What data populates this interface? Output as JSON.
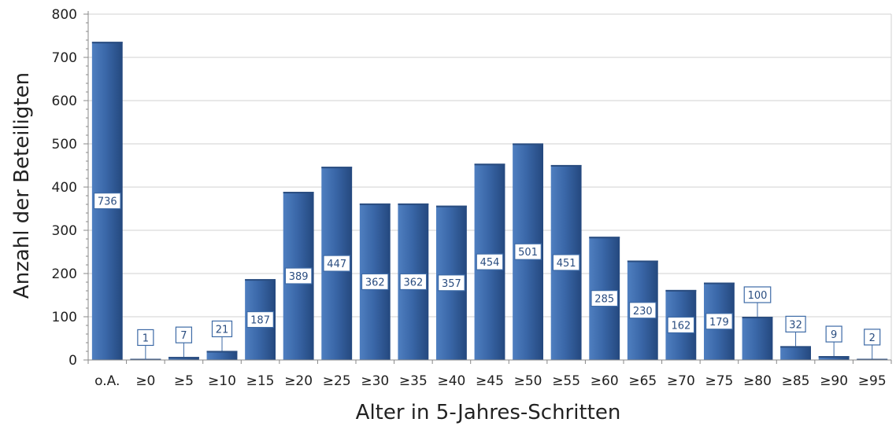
{
  "chart_data": {
    "type": "bar",
    "categories": [
      "o.A.",
      "≥0",
      "≥5",
      "≥10",
      "≥15",
      "≥20",
      "≥25",
      "≥30",
      "≥35",
      "≥40",
      "≥45",
      "≥50",
      "≥55",
      "≥60",
      "≥65",
      "≥70",
      "≥75",
      "≥80",
      "≥85",
      "≥90",
      "≥95"
    ],
    "values": [
      736,
      1,
      7,
      21,
      187,
      389,
      447,
      362,
      362,
      357,
      454,
      501,
      451,
      285,
      230,
      162,
      179,
      100,
      32,
      9,
      2
    ],
    "data_labels": [
      "736",
      "1",
      "7",
      "21",
      "187",
      "389",
      "447",
      "362",
      "362",
      "357",
      "454",
      "501",
      "451",
      "285",
      "230",
      "162",
      "179",
      "100",
      "32",
      "9",
      "2"
    ],
    "xlabel": "Alter in 5-Jahres-Schritten",
    "ylabel": "Anzahl der Beteiligten",
    "ylim": [
      0,
      800
    ],
    "yticks": [
      "0",
      "100",
      "200",
      "300",
      "400",
      "500",
      "600",
      "700",
      "800"
    ],
    "grid": true,
    "bar_color": "#3d6aa6"
  }
}
